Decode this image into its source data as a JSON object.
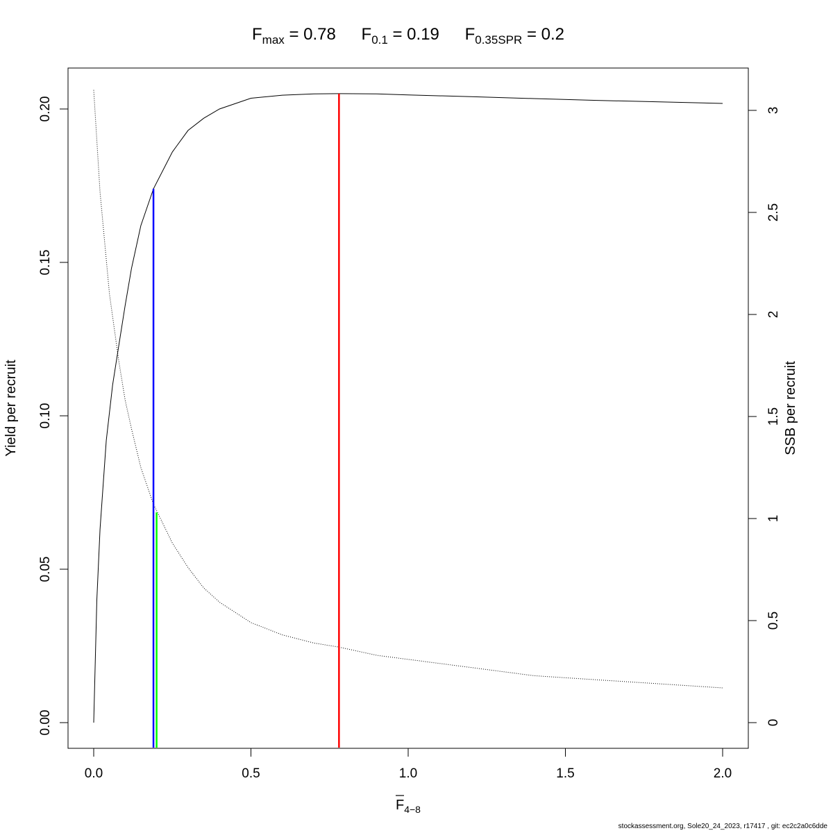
{
  "chart_data": {
    "type": "line",
    "title": {
      "parts": [
        {
          "main": "F",
          "sub": "max",
          "rest": " = 0.78"
        },
        {
          "main": "F",
          "sub": "0.1",
          "rest": " = 0.19"
        },
        {
          "main": "F",
          "sub": "0.35SPR",
          "rest": " = 0.2"
        }
      ]
    },
    "xlabel": {
      "main": "F",
      "sub": "4−8",
      "overbar": true
    },
    "ylabel_left": "Yield per recruit",
    "ylabel_right": "SSB per recruit",
    "xlim": [
      0,
      2
    ],
    "ylim_left": [
      0,
      0.205
    ],
    "ylim_right": [
      0,
      3.1
    ],
    "x_ticks": [
      "0.0",
      "0.5",
      "1.0",
      "1.5",
      "2.0"
    ],
    "y_ticks_left": [
      "0.00",
      "0.05",
      "0.10",
      "0.15",
      "0.20"
    ],
    "y_ticks_right": [
      "0",
      "0.5",
      "1",
      "1.5",
      "2",
      "2.5",
      "3"
    ],
    "series": [
      {
        "name": "Yield per recruit",
        "axis": "left",
        "style": "solid",
        "x": [
          0,
          0.01,
          0.02,
          0.04,
          0.06,
          0.08,
          0.1,
          0.12,
          0.15,
          0.19,
          0.25,
          0.3,
          0.35,
          0.4,
          0.5,
          0.6,
          0.7,
          0.78,
          0.9,
          1.0,
          1.2,
          1.4,
          1.6,
          1.8,
          2.0
        ],
        "y": [
          0,
          0.04,
          0.063,
          0.092,
          0.11,
          0.123,
          0.136,
          0.148,
          0.162,
          0.174,
          0.186,
          0.193,
          0.197,
          0.2,
          0.2035,
          0.2045,
          0.2049,
          0.205,
          0.2049,
          0.2046,
          0.204,
          0.2034,
          0.2028,
          0.2023,
          0.2018
        ]
      },
      {
        "name": "SSB per recruit",
        "axis": "right",
        "style": "dotted",
        "x": [
          0,
          0.02,
          0.05,
          0.08,
          0.1,
          0.12,
          0.15,
          0.19,
          0.25,
          0.3,
          0.35,
          0.4,
          0.5,
          0.6,
          0.7,
          0.78,
          0.9,
          1.0,
          1.2,
          1.4,
          1.6,
          1.8,
          2.0
        ],
        "y": [
          3.1,
          2.6,
          2.1,
          1.77,
          1.58,
          1.44,
          1.25,
          1.07,
          0.88,
          0.76,
          0.66,
          0.59,
          0.49,
          0.43,
          0.39,
          0.37,
          0.33,
          0.31,
          0.27,
          0.23,
          0.21,
          0.19,
          0.17
        ]
      }
    ],
    "reference_lines": [
      {
        "name": "Fmax",
        "x": 0.78,
        "y_top": 0.205,
        "axis": "left",
        "color": "#ff0000"
      },
      {
        "name": "F0.1",
        "x": 0.19,
        "y_top": 0.174,
        "axis": "left",
        "color": "#0000ff"
      },
      {
        "name": "F0.35SPR",
        "x": 0.2,
        "y_top": 1.03,
        "axis": "right",
        "color": "#00ff00"
      }
    ]
  },
  "footer": "stockassessment.org, Sole20_24_2023, r17417 , git: ec2c2a0c6dde"
}
